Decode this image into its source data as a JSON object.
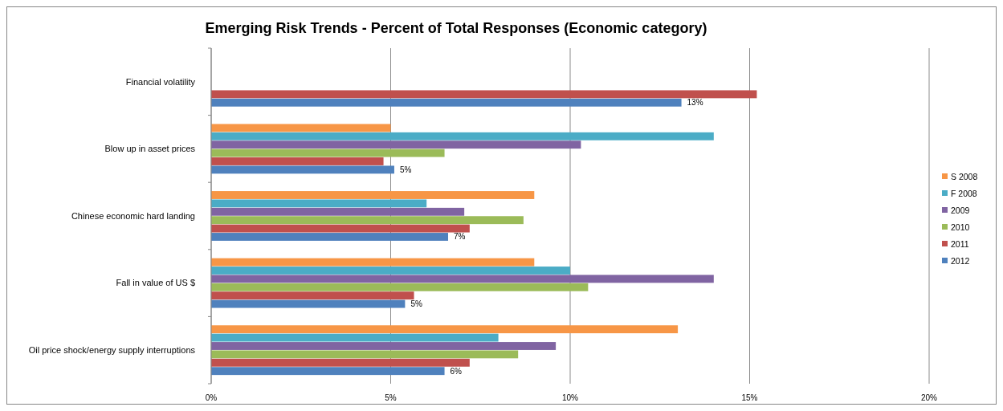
{
  "chart_data": {
    "type": "bar",
    "orientation": "horizontal",
    "title": "Emerging Risk Trends - Percent of Total Responses (Economic category)",
    "categories": [
      "Financial volatility",
      "Blow up in asset prices",
      "Chinese economic hard landing",
      "Fall in value of US $",
      "Oil price shock/energy supply interruptions"
    ],
    "series": [
      {
        "name": "S 2008",
        "color": "#f79646",
        "values": [
          null,
          5.0,
          9.0,
          9.0,
          13.0
        ]
      },
      {
        "name": "F 2008",
        "color": "#4bacc6",
        "values": [
          null,
          14.0,
          6.0,
          10.0,
          8.0
        ]
      },
      {
        "name": "2009",
        "color": "#8064a2",
        "values": [
          null,
          10.3,
          7.05,
          14.0,
          9.6
        ]
      },
      {
        "name": "2010",
        "color": "#9bbb59",
        "values": [
          null,
          6.5,
          8.7,
          10.5,
          8.55
        ]
      },
      {
        "name": "2011",
        "color": "#c0504d",
        "values": [
          15.2,
          4.8,
          7.2,
          5.65,
          7.2
        ]
      },
      {
        "name": "2012",
        "color": "#4f81bd",
        "values": [
          13.1,
          5.1,
          6.6,
          5.4,
          6.5
        ],
        "value_labels": [
          "13%",
          "5%",
          "7%",
          "5%",
          "6%"
        ]
      }
    ],
    "xlim": [
      0,
      20
    ],
    "xticks": [
      {
        "value": 0,
        "label": "0%"
      },
      {
        "value": 5,
        "label": "5%"
      },
      {
        "value": 10,
        "label": "10%"
      },
      {
        "value": 15,
        "label": "15%"
      },
      {
        "value": 20,
        "label": "20%"
      }
    ],
    "grid": "x",
    "legend": "right"
  }
}
